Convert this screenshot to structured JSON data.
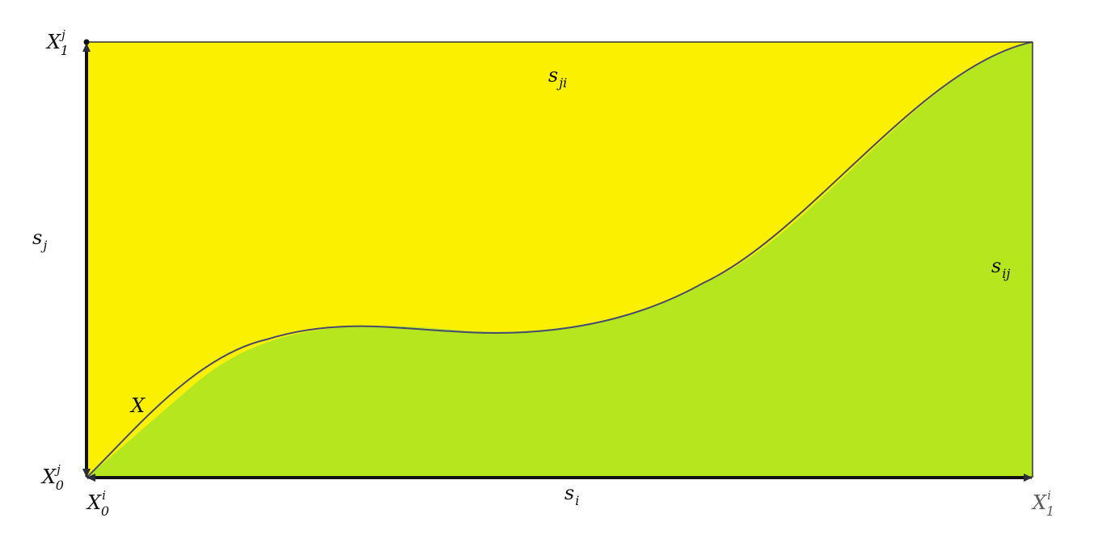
{
  "colors": {
    "upper_region": "#fbf000",
    "lower_region": "#b5e61e",
    "curve": "#4a4a6a",
    "axis": "#111111"
  },
  "labels": {
    "x1j": {
      "base": "X",
      "sup": "j",
      "sub": "1"
    },
    "x0j": {
      "base": "X",
      "sup": "j",
      "sub": "0"
    },
    "x0i": {
      "base": "X",
      "sup": "i",
      "sub": "0"
    },
    "x1i": {
      "base": "X",
      "sup": "i",
      "sub": "1"
    },
    "s_j": {
      "base": "s",
      "sub": "j"
    },
    "s_i": {
      "base": "s",
      "sub": "i"
    },
    "s_ij": {
      "base": "s",
      "sub": "ij"
    },
    "s_ji": {
      "base": "s",
      "sub": "ji"
    },
    "curve": "X"
  }
}
